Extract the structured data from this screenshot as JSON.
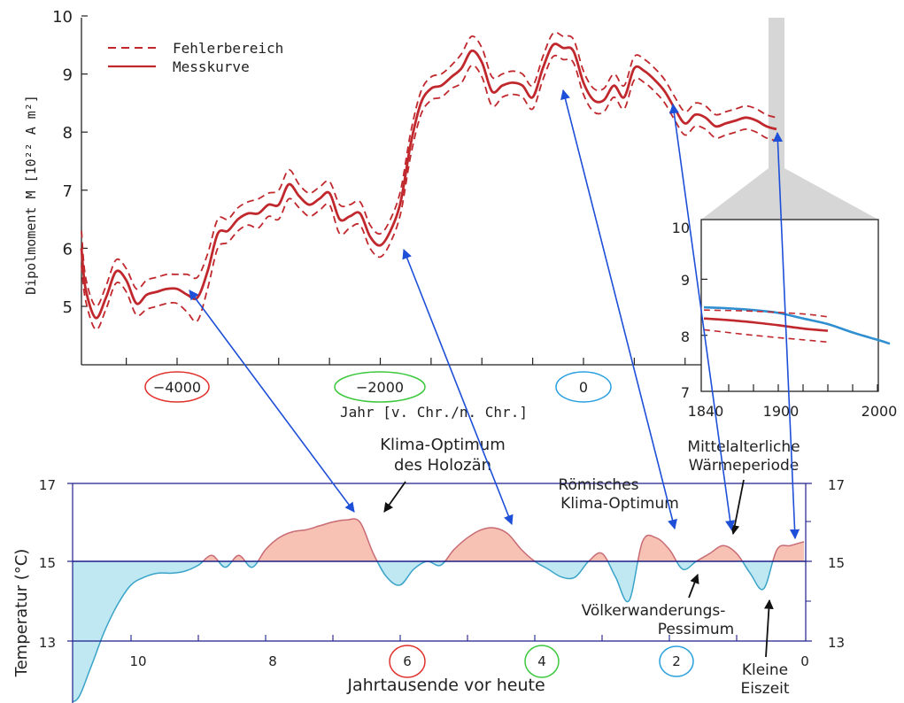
{
  "colors": {
    "curve": "#c0282d",
    "inset_blue": "#2f8fd0",
    "warm_fill": "#f7c1b3",
    "warm_stroke": "#c86b74",
    "cold_fill": "#bfe8f3",
    "cold_stroke": "#3aa3c8",
    "baseline": "#1f1f8a",
    "arrow": "#1e4fd8",
    "circle_red": "#e0312b",
    "circle_green": "#3cc83c",
    "circle_blue": "#2aa0e0"
  },
  "top_chart": {
    "ylabel": "Dipolmoment M  [10²² A m²]",
    "xlabel": "Jahr  [v. Chr./n. Chr.]",
    "yticks": [
      "5",
      "6",
      "7",
      "8",
      "9",
      "10"
    ],
    "xticks": [
      "−4000",
      "−2000",
      "0"
    ],
    "legend": {
      "dashed": "Fehlerbereich",
      "solid": "Messkurve"
    }
  },
  "inset_chart": {
    "yticks": [
      "7",
      "8",
      "9",
      "10"
    ],
    "xticks": [
      "1840",
      "1900",
      "2000"
    ]
  },
  "bottom_chart": {
    "ylabel": "Temperatur (°C)",
    "xlabel": "Jahrtausende vor heute",
    "yticks_left": [
      "17",
      "15",
      "13"
    ],
    "yticks_right": [
      "17",
      "15",
      "13"
    ],
    "xticks": [
      "10",
      "8",
      "6",
      "4",
      "2",
      "0"
    ],
    "annotations": {
      "holozaen_1": "Klima-Optimum",
      "holozaen_2": "des Holozän",
      "roemisch_1": "Römisches",
      "roemisch_2": "Klima-Optimum",
      "mittelalter_1": "Mittelalterliche",
      "mittelalter_2": "Wärmeperiode",
      "voelker_1": "Völkerwanderungs-",
      "voelker_2": "Pessimum",
      "eiszeit_1": "Kleine",
      "eiszeit_2": "Eiszeit"
    }
  },
  "chart_data": [
    {
      "type": "line",
      "xlabel": "Jahr [v. Chr./n. Chr.]",
      "ylabel": "Dipolmoment M [10²² A m²]",
      "xlim": [
        -5000,
        1950
      ],
      "ylim": [
        4,
        10
      ],
      "grid": false,
      "legend_position": "top-left",
      "series": [
        {
          "name": "Messkurve",
          "style": "solid",
          "x": [
            -5000,
            -4900,
            -4800,
            -4700,
            -4600,
            -4500,
            -4400,
            -4300,
            -4200,
            -4100,
            -4000,
            -3900,
            -3800,
            -3700,
            -3600,
            -3500,
            -3400,
            -3300,
            -3200,
            -3100,
            -3000,
            -2900,
            -2800,
            -2700,
            -2600,
            -2500,
            -2400,
            -2300,
            -2200,
            -2100,
            -2000,
            -1900,
            -1800,
            -1700,
            -1600,
            -1500,
            -1400,
            -1300,
            -1200,
            -1100,
            -1000,
            -900,
            -800,
            -700,
            -600,
            -500,
            -400,
            -300,
            -200,
            -100,
            0,
            100,
            200,
            300,
            400,
            500,
            600,
            700,
            800,
            900,
            1000,
            1100,
            1200,
            1300,
            1400,
            1500,
            1600,
            1700,
            1800,
            1900
          ],
          "y": [
            6.0,
            5.3,
            4.8,
            5.15,
            5.6,
            5.45,
            5.05,
            5.2,
            5.25,
            5.3,
            5.3,
            5.2,
            5.15,
            5.6,
            6.25,
            6.3,
            6.5,
            6.6,
            6.6,
            6.75,
            6.75,
            7.1,
            6.9,
            6.75,
            6.85,
            6.95,
            6.5,
            6.55,
            6.6,
            6.2,
            6.05,
            6.3,
            6.8,
            7.8,
            8.5,
            8.75,
            8.8,
            8.95,
            9.1,
            9.4,
            9.2,
            8.7,
            8.8,
            8.85,
            8.8,
            8.6,
            9.1,
            9.5,
            9.45,
            9.4,
            8.85,
            8.55,
            8.55,
            8.8,
            8.6,
            9.1,
            9.05,
            8.9,
            8.7,
            8.4,
            8.15,
            8.3,
            8.25,
            8.1,
            8.15,
            8.2,
            8.25,
            8.2,
            8.1,
            8.05
          ]
        },
        {
          "name": "Fehlerbereich",
          "style": "dashed",
          "upper": [
            6.3,
            5.5,
            5.0,
            5.35,
            5.8,
            5.65,
            5.3,
            5.45,
            5.5,
            5.55,
            5.55,
            5.55,
            5.5,
            5.9,
            6.5,
            6.5,
            6.7,
            6.8,
            6.85,
            6.95,
            7.0,
            7.35,
            7.1,
            6.95,
            7.05,
            7.15,
            6.75,
            6.75,
            6.8,
            6.4,
            6.25,
            6.5,
            7.0,
            8.0,
            8.7,
            8.95,
            9.0,
            9.15,
            9.35,
            9.65,
            9.45,
            8.95,
            9.0,
            9.05,
            9.0,
            8.8,
            9.3,
            9.7,
            9.65,
            9.6,
            9.05,
            8.75,
            8.75,
            9.0,
            8.8,
            9.3,
            9.25,
            9.1,
            8.9,
            8.6,
            8.35,
            8.5,
            8.45,
            8.3,
            8.35,
            8.4,
            8.45,
            8.4,
            8.3,
            8.25
          ],
          "lower": [
            5.7,
            5.1,
            4.6,
            4.95,
            5.4,
            5.25,
            4.85,
            4.95,
            5.0,
            5.05,
            5.05,
            4.9,
            4.75,
            5.3,
            6.0,
            6.1,
            6.3,
            6.4,
            6.35,
            6.55,
            6.5,
            6.85,
            6.7,
            6.55,
            6.65,
            6.75,
            6.25,
            6.35,
            6.4,
            6.0,
            5.85,
            6.1,
            6.6,
            7.6,
            8.3,
            8.55,
            8.6,
            8.75,
            8.85,
            9.15,
            8.95,
            8.45,
            8.6,
            8.65,
            8.6,
            8.4,
            8.9,
            9.3,
            9.25,
            9.2,
            8.65,
            8.35,
            8.35,
            8.6,
            8.4,
            8.9,
            8.85,
            8.7,
            8.5,
            8.2,
            7.95,
            8.1,
            8.05,
            7.9,
            7.95,
            8.0,
            8.05,
            8.0,
            7.9,
            7.85
          ]
        }
      ]
    },
    {
      "type": "line",
      "xlim": [
        1840,
        2000
      ],
      "ylim": [
        7,
        10
      ],
      "xticks": [
        1840,
        1900,
        2000
      ],
      "series": [
        {
          "style": "solid-blue",
          "x": [
            1840,
            1860,
            1880,
            1900,
            1920,
            1940,
            1960,
            1980,
            1990
          ],
          "y": [
            8.5,
            8.48,
            8.45,
            8.4,
            8.3,
            8.2,
            8.05,
            7.92,
            7.85
          ]
        },
        {
          "style": "solid-red",
          "x": [
            1840,
            1860,
            1880,
            1900,
            1920,
            1940
          ],
          "y": [
            8.3,
            8.27,
            8.23,
            8.18,
            8.12,
            8.08
          ]
        },
        {
          "style": "dashed-red",
          "x": [
            1840,
            1880,
            1920,
            1940
          ],
          "y": [
            8.45,
            8.43,
            8.38,
            8.33
          ]
        },
        {
          "style": "dashed-red",
          "x": [
            1840,
            1880,
            1920,
            1940
          ],
          "y": [
            8.1,
            8.0,
            7.92,
            7.88
          ]
        }
      ]
    },
    {
      "type": "area",
      "xlabel": "Jahrtausende vor heute",
      "ylabel": "Temperatur (°C)",
      "xlim": [
        11,
        0
      ],
      "ylim": [
        11.5,
        17
      ],
      "baseline": 15,
      "x": [
        11.0,
        10.8,
        10.6,
        10.4,
        10.2,
        10.0,
        9.8,
        9.6,
        9.4,
        9.2,
        9.0,
        8.8,
        8.6,
        8.4,
        8.2,
        8.0,
        7.8,
        7.6,
        7.4,
        7.2,
        7.0,
        6.8,
        6.6,
        6.4,
        6.2,
        6.0,
        5.8,
        5.6,
        5.4,
        5.2,
        5.0,
        4.8,
        4.6,
        4.4,
        4.2,
        4.0,
        3.8,
        3.6,
        3.4,
        3.2,
        3.0,
        2.8,
        2.6,
        2.4,
        2.2,
        2.0,
        1.8,
        1.6,
        1.4,
        1.2,
        1.0,
        0.8,
        0.6,
        0.4,
        0.2,
        0.0
      ],
      "y": [
        11.5,
        11.5,
        12.3,
        13.2,
        13.9,
        14.4,
        14.6,
        14.7,
        14.7,
        14.75,
        14.9,
        15.15,
        14.85,
        15.15,
        14.85,
        15.3,
        15.6,
        15.75,
        15.8,
        15.9,
        16.0,
        16.05,
        16.0,
        15.2,
        14.6,
        14.4,
        14.8,
        15.0,
        14.9,
        15.3,
        15.6,
        15.8,
        15.85,
        15.7,
        15.3,
        15.0,
        14.8,
        14.6,
        14.6,
        15.0,
        15.2,
        14.6,
        14.0,
        15.5,
        15.6,
        15.3,
        14.8,
        15.0,
        15.2,
        15.4,
        15.2,
        14.7,
        14.3,
        15.3,
        15.4,
        15.5
      ]
    }
  ]
}
